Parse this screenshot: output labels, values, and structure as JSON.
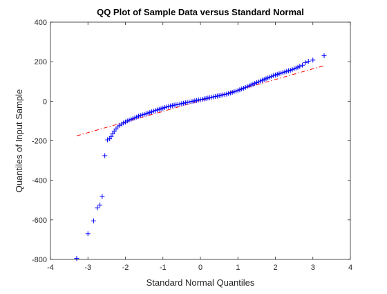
{
  "chart_data": {
    "type": "scatter",
    "title": "QQ Plot of Sample Data versus Standard Normal",
    "xlabel": "Standard Normal Quantiles",
    "ylabel": "Quantiles of Input Sample",
    "xlim": [
      -4,
      4
    ],
    "ylim": [
      -800,
      400
    ],
    "xticks": [
      "-4",
      "-3",
      "-2",
      "-1",
      "0",
      "1",
      "2",
      "3",
      "4"
    ],
    "yticks": [
      "-800",
      "-600",
      "-400",
      "-200",
      "0",
      "200",
      "400"
    ],
    "grid": false,
    "marker": "+",
    "colors": {
      "points": "#0000ff",
      "reference_line": "#ff0000",
      "axes": "#262626"
    },
    "reference_line": {
      "style": "dash-dot",
      "x": [
        -3.3,
        3.3
      ],
      "y": [
        -175,
        180
      ]
    },
    "series": [
      {
        "x": [
          -3.3,
          -3.0,
          -2.85,
          -2.75,
          -2.68,
          -2.62,
          -2.55,
          -2.48,
          -2.42,
          -2.38,
          -2.34,
          -2.3,
          -2.25,
          -2.2,
          -2.15,
          -2.1,
          -2.05,
          -2.0,
          -1.95,
          -1.9,
          -1.85,
          -1.8,
          -1.75,
          -1.7,
          -1.65,
          -1.6,
          -1.55,
          -1.5,
          -1.45,
          -1.4,
          -1.35,
          -1.3,
          -1.25,
          -1.2,
          -1.15,
          -1.1,
          -1.05,
          -1.0,
          -0.95,
          -0.9,
          -0.85,
          -0.8,
          -0.75,
          -0.7,
          -0.65,
          -0.6,
          -0.55,
          -0.5,
          -0.45,
          -0.4,
          -0.35,
          -0.3,
          -0.25,
          -0.2,
          -0.15,
          -0.1,
          -0.05,
          0.0,
          0.05,
          0.1,
          0.15,
          0.2,
          0.25,
          0.3,
          0.35,
          0.4,
          0.45,
          0.5,
          0.55,
          0.6,
          0.65,
          0.7,
          0.75,
          0.8,
          0.85,
          0.9,
          0.95,
          1.0,
          1.05,
          1.1,
          1.15,
          1.2,
          1.25,
          1.3,
          1.35,
          1.4,
          1.45,
          1.5,
          1.55,
          1.6,
          1.65,
          1.7,
          1.75,
          1.8,
          1.85,
          1.9,
          1.95,
          2.0,
          2.05,
          2.1,
          2.15,
          2.2,
          2.25,
          2.3,
          2.35,
          2.4,
          2.45,
          2.5,
          2.55,
          2.6,
          2.65,
          2.72,
          2.8,
          2.88,
          3.0,
          3.3
        ],
        "y": [
          -795,
          -670,
          -605,
          -540,
          -525,
          -482,
          -275,
          -195,
          -190,
          -178,
          -165,
          -152,
          -140,
          -130,
          -122,
          -115,
          -110,
          -105,
          -100,
          -96,
          -92,
          -88,
          -84,
          -80,
          -76,
          -72,
          -69,
          -66,
          -63,
          -60,
          -57,
          -54,
          -50,
          -47,
          -44,
          -41,
          -38,
          -35,
          -32,
          -29,
          -26,
          -24,
          -22,
          -20,
          -18,
          -16,
          -14,
          -12,
          -10,
          -8,
          -6,
          -4,
          -2,
          0,
          2,
          4,
          6,
          8,
          10,
          12,
          14,
          16,
          18,
          20,
          22,
          24,
          26,
          28,
          30,
          32,
          34,
          36,
          39,
          42,
          45,
          48,
          51,
          54,
          58,
          62,
          66,
          70,
          74,
          78,
          82,
          86,
          90,
          94,
          98,
          102,
          106,
          110,
          114,
          118,
          122,
          126,
          130,
          133,
          136,
          139,
          142,
          145,
          148,
          151,
          154,
          157,
          160,
          164,
          168,
          172,
          176,
          182,
          195,
          202,
          208,
          230
        ]
      }
    ]
  }
}
